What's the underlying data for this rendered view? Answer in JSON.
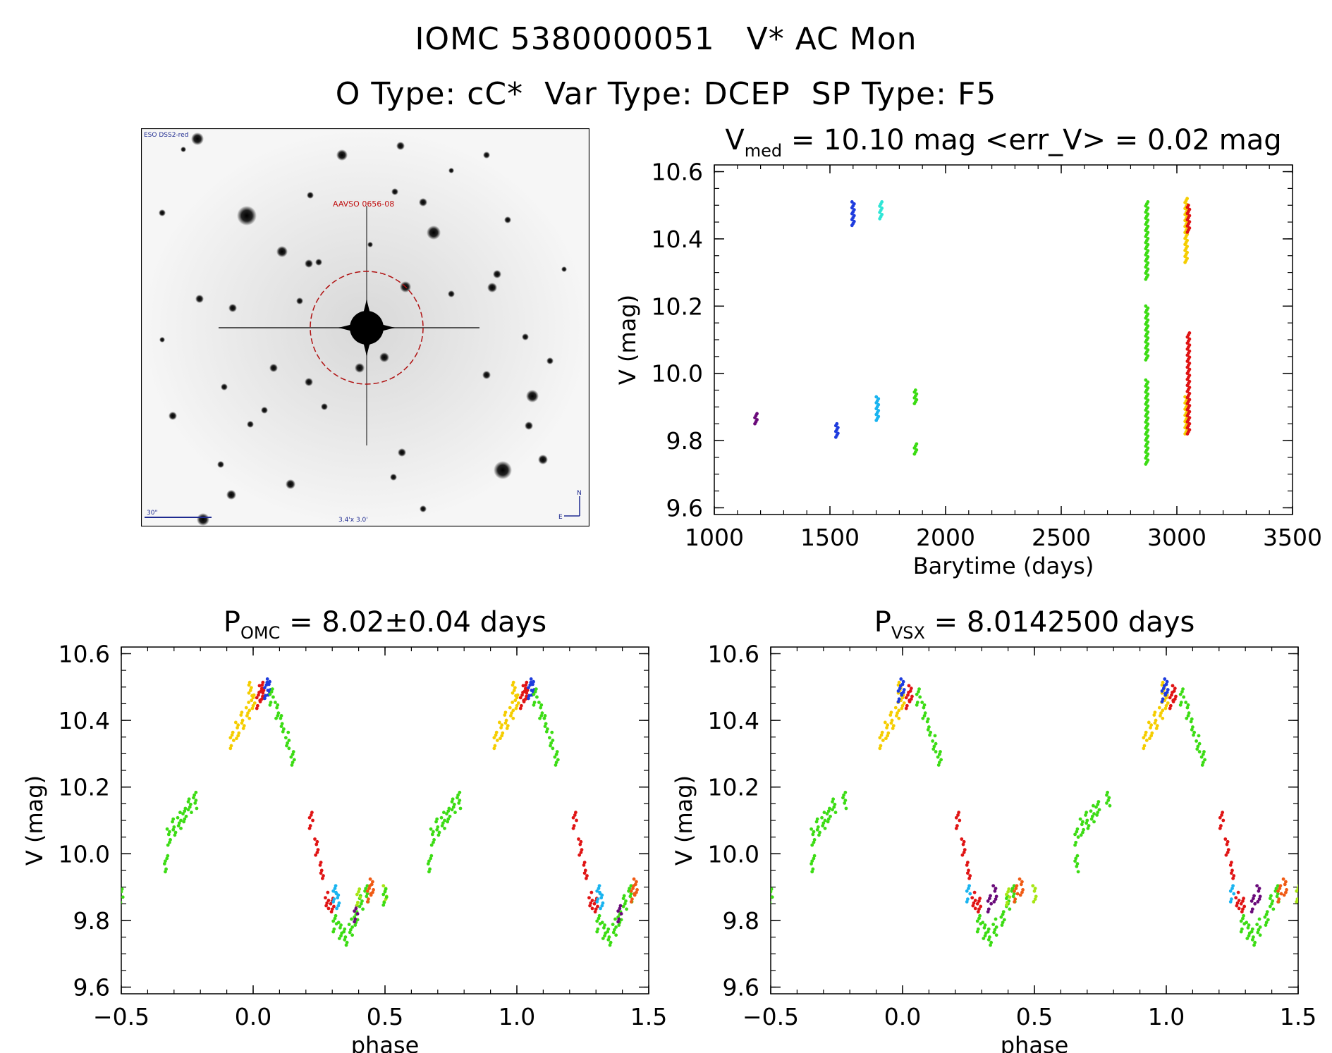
{
  "header": {
    "title_line1": "IOMC 5380000051   V* AC Mon",
    "title_line2": "O Type: cC*  Var Type: DCEP  SP Type: F5"
  },
  "finder_chart": {
    "corner_label": "ESO DSS2-red",
    "target_label": "AAVSO 0656-08",
    "scale_label": "30\"",
    "fov_label": "3.4'x 3.0'",
    "compass_n": "N",
    "compass_e": "E"
  },
  "colors": {
    "purple": "#6a0a7a",
    "blue": "#1e3cde",
    "cyan": "#19b4f0",
    "teal": "#2ee6d6",
    "green": "#3cdc14",
    "yellow": "#f5cd00",
    "lime": "#a6e614",
    "red": "#e01414",
    "orange": "#f05a14"
  },
  "chart_data": [
    {
      "id": "lightcurve",
      "type": "scatter",
      "title_main": "V",
      "title_sub": "med",
      "title_rest": " = 10.10 mag <err_V> = 0.02 mag",
      "xlabel": "Barytime (days)",
      "ylabel": "V (mag)",
      "xlim": [
        1000,
        3500
      ],
      "ylim": [
        10.62,
        9.58
      ],
      "xticks": [
        1000,
        1500,
        2000,
        2500,
        3000,
        3500
      ],
      "xticklabels": [
        "1000",
        "1500",
        "2000",
        "2500",
        "3000",
        "3500"
      ],
      "yticks": [
        9.6,
        9.8,
        10.0,
        10.2,
        10.4,
        10.6
      ],
      "yticklabels": [
        "9.6",
        "9.8",
        "10.0",
        "10.2",
        "10.4",
        "10.6"
      ],
      "segments": [
        {
          "x": 1180,
          "y0": 9.85,
          "y1": 9.88,
          "color": "purple"
        },
        {
          "x": 1530,
          "y0": 9.81,
          "y1": 9.85,
          "color": "blue"
        },
        {
          "x": 1600,
          "y0": 10.44,
          "y1": 10.51,
          "color": "blue"
        },
        {
          "x": 1705,
          "y0": 9.86,
          "y1": 9.93,
          "color": "cyan"
        },
        {
          "x": 1720,
          "y0": 10.46,
          "y1": 10.51,
          "color": "teal"
        },
        {
          "x": 1870,
          "y0": 9.76,
          "y1": 9.79,
          "color": "green"
        },
        {
          "x": 1870,
          "y0": 9.91,
          "y1": 9.95,
          "color": "green"
        },
        {
          "x": 2870,
          "y0": 9.73,
          "y1": 9.98,
          "color": "green"
        },
        {
          "x": 2870,
          "y0": 10.04,
          "y1": 10.2,
          "color": "green"
        },
        {
          "x": 2870,
          "y0": 10.28,
          "y1": 10.51,
          "color": "green"
        },
        {
          "x": 3040,
          "y0": 9.82,
          "y1": 9.93,
          "color": "yellow"
        },
        {
          "x": 3040,
          "y0": 10.33,
          "y1": 10.52,
          "color": "yellow"
        },
        {
          "x": 3050,
          "y0": 9.82,
          "y1": 10.12,
          "color": "red"
        },
        {
          "x": 3050,
          "y0": 10.42,
          "y1": 10.5,
          "color": "red"
        }
      ]
    },
    {
      "id": "phase_omc",
      "type": "scatter",
      "title_main": "P",
      "title_sub": "OMC",
      "title_rest": " = 8.02±0.04 days",
      "xlabel": "phase",
      "ylabel": "V (mag)",
      "xlim": [
        -0.5,
        1.5
      ],
      "ylim": [
        10.62,
        9.58
      ],
      "xticks": [
        -0.5,
        0.0,
        0.5,
        1.0,
        1.5
      ],
      "xticklabels": [
        "−0.5",
        "0.0",
        "0.5",
        "1.0",
        "1.5"
      ],
      "yticks": [
        9.6,
        9.8,
        10.0,
        10.2,
        10.4,
        10.6
      ],
      "yticklabels": [
        "9.6",
        "9.8",
        "10.0",
        "10.2",
        "10.4",
        "10.6"
      ],
      "groups": [
        {
          "color": "green",
          "points": [
            [
              -0.5,
              9.87
            ],
            [
              -0.32,
              10.05
            ],
            [
              -0.3,
              10.08
            ],
            [
              -0.28,
              10.1
            ],
            [
              -0.26,
              10.12
            ],
            [
              -0.24,
              10.14
            ],
            [
              -0.22,
              10.16
            ],
            [
              -0.33,
              9.97
            ]
          ]
        },
        {
          "color": "yellow",
          "points": [
            [
              -0.08,
              10.34
            ],
            [
              -0.06,
              10.37
            ],
            [
              -0.04,
              10.4
            ],
            [
              -0.02,
              10.43
            ],
            [
              0.0,
              10.46
            ],
            [
              -0.01,
              10.49
            ]
          ]
        },
        {
          "color": "red",
          "points": [
            [
              0.02,
              10.46
            ],
            [
              0.03,
              10.48
            ],
            [
              0.04,
              10.49
            ]
          ]
        },
        {
          "color": "blue",
          "points": [
            [
              0.05,
              10.49
            ],
            [
              0.06,
              10.5
            ]
          ]
        },
        {
          "color": "green",
          "points": [
            [
              0.07,
              10.47
            ],
            [
              0.09,
              10.43
            ],
            [
              0.11,
              10.39
            ],
            [
              0.13,
              10.34
            ],
            [
              0.15,
              10.29
            ]
          ]
        },
        {
          "color": "red",
          "points": [
            [
              0.22,
              10.1
            ],
            [
              0.24,
              10.02
            ],
            [
              0.26,
              9.95
            ],
            [
              0.28,
              9.86
            ],
            [
              0.3,
              9.85
            ]
          ]
        },
        {
          "color": "cyan",
          "points": [
            [
              0.31,
              9.88
            ],
            [
              0.32,
              9.86
            ]
          ]
        },
        {
          "color": "green",
          "points": [
            [
              0.31,
              9.79
            ],
            [
              0.33,
              9.77
            ],
            [
              0.35,
              9.75
            ],
            [
              0.37,
              9.78
            ],
            [
              0.39,
              9.81
            ],
            [
              0.41,
              9.85
            ],
            [
              0.43,
              9.88
            ]
          ]
        },
        {
          "color": "purple",
          "points": [
            [
              0.39,
              9.82
            ]
          ]
        },
        {
          "color": "lime",
          "points": [
            [
              0.4,
              9.87
            ],
            [
              0.5,
              9.88
            ]
          ]
        },
        {
          "color": "orange",
          "points": [
            [
              0.44,
              9.88
            ],
            [
              0.45,
              9.9
            ]
          ]
        },
        {
          "color": "green",
          "points": [
            [
              0.5,
              9.87
            ],
            [
              0.68,
              10.05
            ],
            [
              0.7,
              10.08
            ],
            [
              0.72,
              10.1
            ],
            [
              0.74,
              10.12
            ],
            [
              0.76,
              10.14
            ],
            [
              0.78,
              10.16
            ],
            [
              0.67,
              9.97
            ]
          ]
        },
        {
          "color": "yellow",
          "points": [
            [
              0.92,
              10.34
            ],
            [
              0.94,
              10.37
            ],
            [
              0.96,
              10.4
            ],
            [
              0.98,
              10.43
            ],
            [
              1.0,
              10.46
            ],
            [
              0.99,
              10.49
            ]
          ]
        },
        {
          "color": "red",
          "points": [
            [
              1.02,
              10.46
            ],
            [
              1.03,
              10.48
            ],
            [
              1.04,
              10.49
            ]
          ]
        },
        {
          "color": "blue",
          "points": [
            [
              1.05,
              10.49
            ],
            [
              1.06,
              10.5
            ]
          ]
        },
        {
          "color": "green",
          "points": [
            [
              1.07,
              10.47
            ],
            [
              1.09,
              10.43
            ],
            [
              1.11,
              10.39
            ],
            [
              1.13,
              10.34
            ],
            [
              1.15,
              10.29
            ]
          ]
        },
        {
          "color": "red",
          "points": [
            [
              1.22,
              10.1
            ],
            [
              1.24,
              10.02
            ],
            [
              1.26,
              9.95
            ],
            [
              1.28,
              9.86
            ],
            [
              1.3,
              9.85
            ]
          ]
        },
        {
          "color": "cyan",
          "points": [
            [
              1.31,
              9.88
            ],
            [
              1.32,
              9.86
            ]
          ]
        },
        {
          "color": "green",
          "points": [
            [
              1.31,
              9.79
            ],
            [
              1.33,
              9.77
            ],
            [
              1.35,
              9.75
            ],
            [
              1.37,
              9.78
            ],
            [
              1.39,
              9.81
            ],
            [
              1.41,
              9.85
            ],
            [
              1.43,
              9.88
            ]
          ]
        },
        {
          "color": "purple",
          "points": [
            [
              1.39,
              9.82
            ]
          ]
        },
        {
          "color": "orange",
          "points": [
            [
              1.44,
              9.88
            ],
            [
              1.45,
              9.9
            ]
          ]
        }
      ]
    },
    {
      "id": "phase_vsx",
      "type": "scatter",
      "title_main": "P",
      "title_sub": "VSX",
      "title_rest": " = 8.0142500 days",
      "xlabel": "phase",
      "ylabel": "V (mag)",
      "xlim": [
        -0.5,
        1.5
      ],
      "ylim": [
        10.62,
        9.58
      ],
      "xticks": [
        -0.5,
        0.0,
        0.5,
        1.0,
        1.5
      ],
      "xticklabels": [
        "−0.5",
        "0.0",
        "0.5",
        "1.0",
        "1.5"
      ],
      "yticks": [
        9.6,
        9.8,
        10.0,
        10.2,
        10.4,
        10.6
      ],
      "yticklabels": [
        "9.6",
        "9.8",
        "10.0",
        "10.2",
        "10.4",
        "10.6"
      ],
      "groups": [
        {
          "color": "green",
          "points": [
            [
              -0.5,
              9.87
            ],
            [
              -0.34,
              10.05
            ],
            [
              -0.32,
              10.08
            ],
            [
              -0.3,
              10.1
            ],
            [
              -0.28,
              10.12
            ],
            [
              -0.26,
              10.14
            ],
            [
              -0.22,
              10.16
            ],
            [
              -0.34,
              9.97
            ]
          ]
        },
        {
          "color": "yellow",
          "points": [
            [
              -0.08,
              10.34
            ],
            [
              -0.06,
              10.37
            ],
            [
              -0.04,
              10.4
            ],
            [
              -0.02,
              10.43
            ],
            [
              0.0,
              10.46
            ],
            [
              -0.01,
              10.49
            ]
          ]
        },
        {
          "color": "blue",
          "points": [
            [
              -0.01,
              10.48
            ],
            [
              0.0,
              10.5
            ]
          ]
        },
        {
          "color": "red",
          "points": [
            [
              0.02,
              10.46
            ],
            [
              0.03,
              10.48
            ]
          ]
        },
        {
          "color": "green",
          "points": [
            [
              0.06,
              10.47
            ],
            [
              0.08,
              10.43
            ],
            [
              0.1,
              10.38
            ],
            [
              0.12,
              10.33
            ],
            [
              0.14,
              10.29
            ]
          ]
        },
        {
          "color": "red",
          "points": [
            [
              0.21,
              10.1
            ],
            [
              0.23,
              10.02
            ],
            [
              0.25,
              9.95
            ],
            [
              0.27,
              9.86
            ],
            [
              0.29,
              9.85
            ]
          ]
        },
        {
          "color": "cyan",
          "points": [
            [
              0.25,
              9.88
            ]
          ]
        },
        {
          "color": "green",
          "points": [
            [
              0.29,
              9.79
            ],
            [
              0.31,
              9.77
            ],
            [
              0.33,
              9.75
            ],
            [
              0.35,
              9.78
            ],
            [
              0.38,
              9.81
            ],
            [
              0.4,
              9.85
            ],
            [
              0.42,
              9.88
            ]
          ]
        },
        {
          "color": "purple",
          "points": [
            [
              0.33,
              9.85
            ],
            [
              0.35,
              9.88
            ]
          ]
        },
        {
          "color": "lime",
          "points": [
            [
              0.4,
              9.87
            ],
            [
              0.5,
              9.88
            ]
          ]
        },
        {
          "color": "orange",
          "points": [
            [
              0.43,
              9.88
            ],
            [
              0.45,
              9.9
            ]
          ]
        },
        {
          "color": "green",
          "points": [
            [
              0.66,
              10.05
            ],
            [
              0.68,
              10.08
            ],
            [
              0.7,
              10.1
            ],
            [
              0.72,
              10.12
            ],
            [
              0.74,
              10.14
            ],
            [
              0.78,
              10.16
            ],
            [
              0.66,
              9.97
            ]
          ]
        },
        {
          "color": "yellow",
          "points": [
            [
              0.92,
              10.34
            ],
            [
              0.94,
              10.37
            ],
            [
              0.96,
              10.4
            ],
            [
              0.98,
              10.43
            ],
            [
              1.0,
              10.46
            ],
            [
              0.99,
              10.49
            ]
          ]
        },
        {
          "color": "blue",
          "points": [
            [
              0.99,
              10.48
            ],
            [
              1.0,
              10.5
            ]
          ]
        },
        {
          "color": "red",
          "points": [
            [
              1.02,
              10.46
            ],
            [
              1.03,
              10.48
            ]
          ]
        },
        {
          "color": "green",
          "points": [
            [
              1.06,
              10.47
            ],
            [
              1.08,
              10.43
            ],
            [
              1.1,
              10.38
            ],
            [
              1.12,
              10.33
            ],
            [
              1.14,
              10.29
            ]
          ]
        },
        {
          "color": "red",
          "points": [
            [
              1.21,
              10.1
            ],
            [
              1.23,
              10.02
            ],
            [
              1.25,
              9.95
            ],
            [
              1.27,
              9.86
            ],
            [
              1.29,
              9.85
            ]
          ]
        },
        {
          "color": "cyan",
          "points": [
            [
              1.25,
              9.88
            ]
          ]
        },
        {
          "color": "green",
          "points": [
            [
              1.29,
              9.79
            ],
            [
              1.31,
              9.77
            ],
            [
              1.33,
              9.75
            ],
            [
              1.35,
              9.78
            ],
            [
              1.38,
              9.81
            ],
            [
              1.4,
              9.85
            ],
            [
              1.42,
              9.88
            ]
          ]
        },
        {
          "color": "purple",
          "points": [
            [
              1.33,
              9.85
            ],
            [
              1.35,
              9.88
            ]
          ]
        },
        {
          "color": "orange",
          "points": [
            [
              1.43,
              9.88
            ],
            [
              1.45,
              9.9
            ]
          ]
        },
        {
          "color": "lime",
          "points": [
            [
              1.5,
              9.88
            ]
          ]
        }
      ]
    }
  ]
}
